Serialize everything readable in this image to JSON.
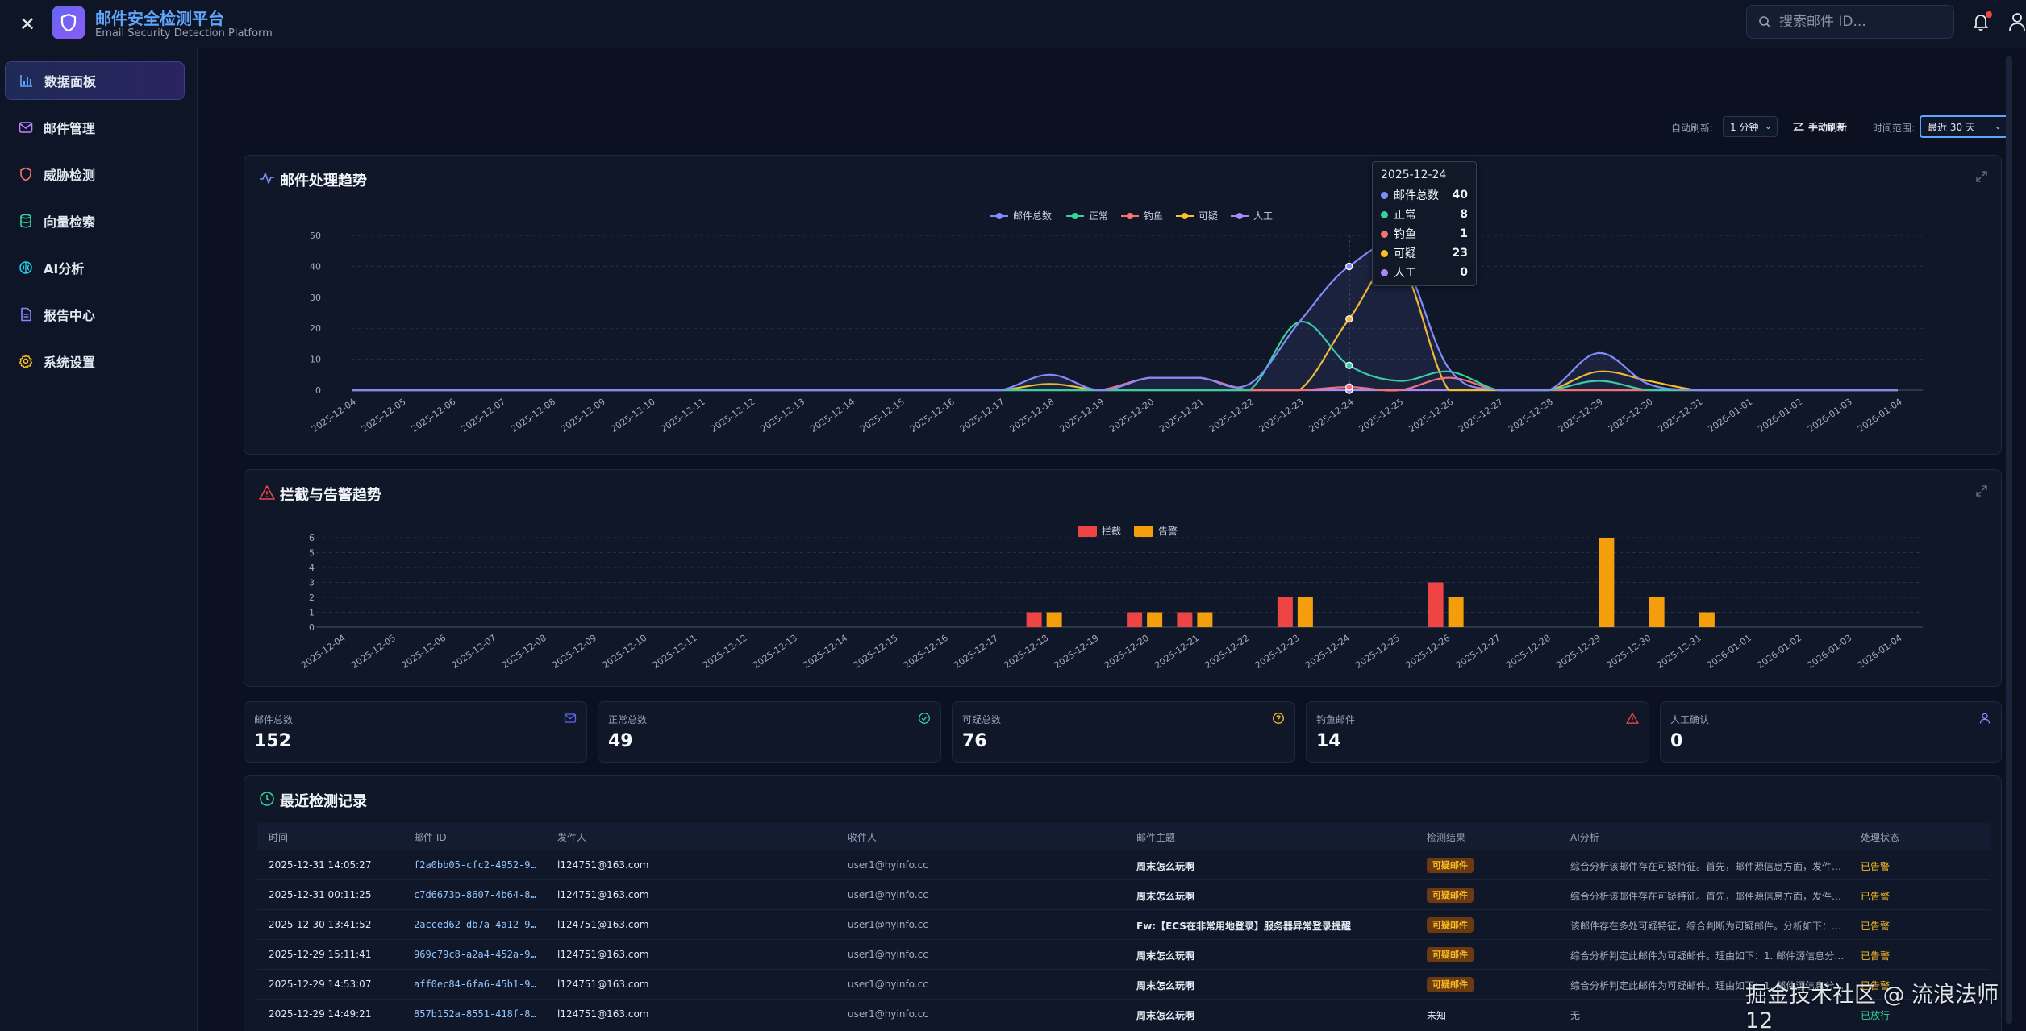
{
  "app": {
    "title": "邮件安全检测平台",
    "subtitle": "Email Security Detection Platform",
    "close_label": "✕"
  },
  "search": {
    "placeholder": "搜索邮件 ID..."
  },
  "sidebar": {
    "items": [
      {
        "label": "数据面板",
        "icon": "bar-chart-icon",
        "active": true
      },
      {
        "label": "邮件管理",
        "icon": "mail-icon"
      },
      {
        "label": "威胁检测",
        "icon": "shield-icon"
      },
      {
        "label": "向量检索",
        "icon": "database-icon"
      },
      {
        "label": "AI分析",
        "icon": "brain-icon"
      },
      {
        "label": "报告中心",
        "icon": "document-icon"
      },
      {
        "label": "系统设置",
        "icon": "gear-icon"
      }
    ]
  },
  "toolbar": {
    "auto_refresh_label": "自动刷新:",
    "auto_refresh_value": "1 分钟",
    "manual_refresh": "手动刷新",
    "time_range_label": "时间范围:",
    "time_range_value": "最近 30 天"
  },
  "trend": {
    "title": "邮件处理趋势",
    "tooltip": {
      "date": "2025-12-24",
      "rows": [
        {
          "name": "邮件总数",
          "value": "40"
        },
        {
          "name": "正常",
          "value": "8"
        },
        {
          "name": "钓鱼",
          "value": "1"
        },
        {
          "name": "可疑",
          "value": "23"
        },
        {
          "name": "人工",
          "value": "0"
        }
      ]
    }
  },
  "block": {
    "title": "拦截与告警趋势"
  },
  "chart_data": [
    {
      "type": "line",
      "title": "邮件处理趋势",
      "smooth": true,
      "x": [
        "2025-12-04",
        "2025-12-05",
        "2025-12-06",
        "2025-12-07",
        "2025-12-08",
        "2025-12-09",
        "2025-12-10",
        "2025-12-11",
        "2025-12-12",
        "2025-12-13",
        "2025-12-14",
        "2025-12-15",
        "2025-12-16",
        "2025-12-17",
        "2025-12-18",
        "2025-12-19",
        "2025-12-20",
        "2025-12-21",
        "2025-12-22",
        "2025-12-23",
        "2025-12-24",
        "2025-12-25",
        "2025-12-26",
        "2025-12-27",
        "2025-12-28",
        "2025-12-29",
        "2025-12-30",
        "2025-12-31",
        "2026-01-01",
        "2026-01-02",
        "2026-01-03",
        "2026-01-04"
      ],
      "ylim": [
        0,
        50
      ],
      "yticks": [
        0,
        10,
        20,
        30,
        40,
        50
      ],
      "grid": true,
      "legend": "top-center",
      "series": [
        {
          "name": "邮件总数",
          "color": "#818cf8",
          "area": true,
          "values": [
            0,
            0,
            0,
            0,
            0,
            0,
            0,
            0,
            0,
            0,
            0,
            0,
            0,
            0,
            5,
            0,
            4,
            4,
            2,
            22,
            40,
            44,
            7,
            0,
            0,
            12,
            2,
            0,
            0,
            0,
            0,
            0
          ]
        },
        {
          "name": "正常",
          "color": "#34d399",
          "values": [
            0,
            0,
            0,
            0,
            0,
            0,
            0,
            0,
            0,
            0,
            0,
            0,
            0,
            0,
            0,
            0,
            0,
            0,
            0,
            22,
            8,
            3,
            6,
            0,
            0,
            3,
            0,
            0,
            0,
            0,
            0,
            0
          ]
        },
        {
          "name": "钓鱼",
          "color": "#f87171",
          "values": [
            0,
            0,
            0,
            0,
            0,
            0,
            0,
            0,
            0,
            0,
            0,
            0,
            0,
            0,
            0,
            0,
            4,
            4,
            0,
            0,
            1,
            0,
            4,
            0,
            0,
            0,
            0,
            0,
            0,
            0,
            0,
            0
          ]
        },
        {
          "name": "可疑",
          "color": "#fbbf24",
          "values": [
            0,
            0,
            0,
            0,
            0,
            0,
            0,
            0,
            0,
            0,
            0,
            0,
            0,
            0,
            2,
            0,
            0,
            0,
            0,
            0,
            23,
            41,
            0,
            0,
            0,
            6,
            3,
            0,
            0,
            0,
            0,
            0
          ]
        },
        {
          "name": "人工",
          "color": "#a78bfa",
          "values": [
            0,
            0,
            0,
            0,
            0,
            0,
            0,
            0,
            0,
            0,
            0,
            0,
            0,
            0,
            0,
            0,
            0,
            0,
            0,
            0,
            0,
            0,
            0,
            0,
            0,
            0,
            0,
            0,
            0,
            0,
            0,
            0
          ]
        }
      ]
    },
    {
      "type": "bar",
      "title": "拦截与告警趋势",
      "categories": [
        "2025-12-04",
        "2025-12-05",
        "2025-12-06",
        "2025-12-07",
        "2025-12-08",
        "2025-12-09",
        "2025-12-10",
        "2025-12-11",
        "2025-12-12",
        "2025-12-13",
        "2025-12-14",
        "2025-12-15",
        "2025-12-16",
        "2025-12-17",
        "2025-12-18",
        "2025-12-19",
        "2025-12-20",
        "2025-12-21",
        "2025-12-22",
        "2025-12-23",
        "2025-12-24",
        "2025-12-25",
        "2025-12-26",
        "2025-12-27",
        "2025-12-28",
        "2025-12-29",
        "2025-12-30",
        "2025-12-31",
        "2026-01-01",
        "2026-01-02",
        "2026-01-03",
        "2026-01-04"
      ],
      "ylim": [
        0,
        6
      ],
      "yticks": [
        0,
        1,
        2,
        3,
        4,
        5,
        6
      ],
      "grid": true,
      "legend": "top-center",
      "series": [
        {
          "name": "拦截",
          "color": "#ef4444",
          "values": [
            0,
            0,
            0,
            0,
            0,
            0,
            0,
            0,
            0,
            0,
            0,
            0,
            0,
            0,
            1,
            0,
            1,
            1,
            0,
            2,
            0,
            0,
            3,
            0,
            0,
            0,
            0,
            0,
            0,
            0,
            0,
            0
          ]
        },
        {
          "name": "告警",
          "color": "#f59e0b",
          "values": [
            0,
            0,
            0,
            0,
            0,
            0,
            0,
            0,
            0,
            0,
            0,
            0,
            0,
            0,
            1,
            0,
            1,
            1,
            0,
            2,
            0,
            0,
            2,
            0,
            0,
            6,
            2,
            1,
            0,
            0,
            0,
            0
          ]
        }
      ]
    }
  ],
  "stats": [
    {
      "label": "邮件总数",
      "value": "152",
      "icon": "mail-icon",
      "color": "#6366f1"
    },
    {
      "label": "正常总数",
      "value": "49",
      "icon": "check-circle-icon",
      "color": "#34d399"
    },
    {
      "label": "可疑总数",
      "value": "76",
      "icon": "question-circle-icon",
      "color": "#fbbf24"
    },
    {
      "label": "钓鱼邮件",
      "value": "14",
      "icon": "warning-icon",
      "color": "#ef4444"
    },
    {
      "label": "人工确认",
      "value": "0",
      "icon": "user-icon",
      "color": "#818cf8"
    }
  ],
  "records": {
    "title": "最近检测记录",
    "columns": [
      "时间",
      "邮件 ID",
      "发件人",
      "收件人",
      "邮件主题",
      "检测结果",
      "AI分析",
      "处理状态"
    ],
    "rows": [
      {
        "time": "2025-12-31 14:05:27",
        "id": "f2a0bb05-cfc2-4952-9…",
        "from": "l124751@163.com",
        "to": "user1@hyinfo.cc",
        "subject": "周末怎么玩啊",
        "result": "可疑邮件",
        "ai": "综合分析该邮件存在可疑特征。首先，邮件源信息方面，发件…",
        "status": "已告警"
      },
      {
        "time": "2025-12-31 00:11:25",
        "id": "c7d6673b-8607-4b64-8…",
        "from": "l124751@163.com",
        "to": "user1@hyinfo.cc",
        "subject": "周末怎么玩啊",
        "result": "可疑邮件",
        "ai": "综合分析该邮件存在可疑特征。首先，邮件源信息方面，发件…",
        "status": "已告警"
      },
      {
        "time": "2025-12-30 13:41:52",
        "id": "2acced62-db7a-4a12-9…",
        "from": "l124751@163.com",
        "to": "user1@hyinfo.cc",
        "subject": "Fw:【ECS在非常用地登录】服务器异常登录提醒",
        "result": "可疑邮件",
        "ai": "该邮件存在多处可疑特征，综合判断为可疑邮件。分析如下：…",
        "status": "已告警"
      },
      {
        "time": "2025-12-29 15:11:41",
        "id": "969c79c8-a2a4-452a-9…",
        "from": "l124751@163.com",
        "to": "user1@hyinfo.cc",
        "subject": "周末怎么玩啊",
        "result": "可疑邮件",
        "ai": "综合分析判定此邮件为可疑邮件。理由如下：1. 邮件源信息分…",
        "status": "已告警"
      },
      {
        "time": "2025-12-29 14:53:07",
        "id": "aff0ec84-6fa6-45b1-9…",
        "from": "l124751@163.com",
        "to": "user1@hyinfo.cc",
        "subject": "周末怎么玩啊",
        "result": "可疑邮件",
        "ai": "综合分析判定此邮件为可疑邮件。理由如下：1. 邮件源信息分…",
        "status": "已告警"
      },
      {
        "time": "2025-12-29 14:49:21",
        "id": "857b152a-8551-418f-8…",
        "from": "l124751@163.com",
        "to": "user1@hyinfo.cc",
        "subject": "周末怎么玩啊",
        "result": "未知",
        "ai": "无",
        "status": "已放行"
      }
    ]
  },
  "watermark": "掘金技术社区 @ 流浪法师12"
}
